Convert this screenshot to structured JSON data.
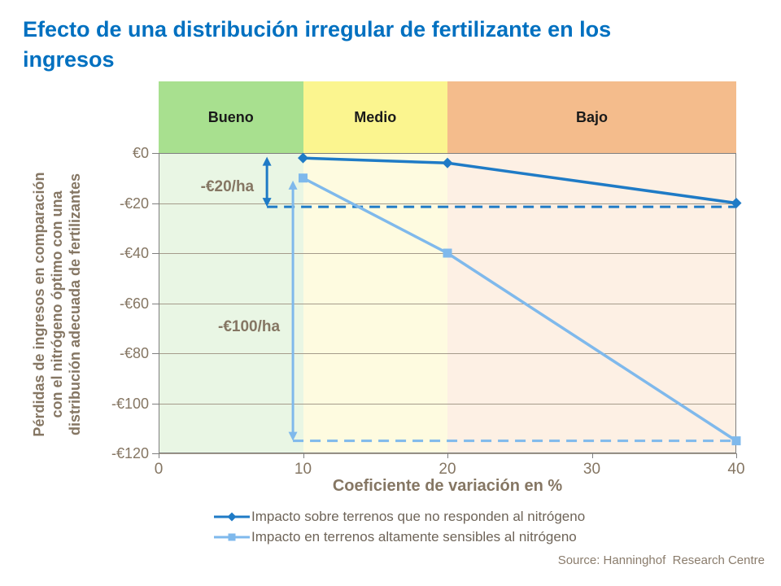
{
  "title": "Efecto de una distribución irregular de fertilizante en los ingresos",
  "source": "Source: Hanninghof  Research Centre",
  "colors": {
    "title_blue": "#0070C0",
    "axis_text_brown": "#857663",
    "gridline": "#a59b8b",
    "series_dark_blue": "#1F7BC6",
    "series_light_blue": "#7FB9EC"
  },
  "chart_data": {
    "type": "line",
    "x": [
      10,
      20,
      40
    ],
    "xlim": [
      0,
      40
    ],
    "ylim": [
      -120,
      0
    ],
    "x_ticks": [
      "0",
      "10",
      "20",
      "30",
      "40"
    ],
    "y_ticks": [
      "€0",
      "-€20",
      "-€40",
      "-€60",
      "-€80",
      "-€100",
      "-€120"
    ],
    "xlabel": "Coeficiente de variación en %",
    "ylabel": "Pérdidas de ingresos en comparación\ncon el nitrógeno óptimo con una\ndistribución adecuada de fertilizantes",
    "grid": true,
    "legend_position": "bottom",
    "series": [
      {
        "name": "Impacto sobre terrenos que no responden al nitrógeno",
        "values": [
          -2,
          -4,
          -20
        ],
        "color": "#1F7BC6",
        "marker": "diamond"
      },
      {
        "name": "Impacto en terrenos altamente sensibles al nitrógeno",
        "values": [
          -10,
          -40,
          -115
        ],
        "color": "#7FB9EC",
        "marker": "square"
      }
    ],
    "zones": [
      {
        "label": "Bueno",
        "from": 0,
        "to": 10,
        "color": "#A8E08F",
        "tint": "#E9F6E4"
      },
      {
        "label": "Medio",
        "from": 10,
        "to": 20,
        "color": "#FBF58F",
        "tint": "#FEFBE0"
      },
      {
        "label": "Bajo",
        "from": 20,
        "to": 40,
        "color": "#F4BC8C",
        "tint": "#FDF0E4"
      }
    ],
    "annotations": [
      {
        "text": "-€20/ha",
        "series": 0,
        "ref_value": -21.5,
        "arrow_from": -1.5,
        "arrow_at_x": 7.5,
        "label_at": -14
      },
      {
        "text": "-€100/ha",
        "series": 1,
        "ref_value": -115,
        "arrow_from": -11,
        "arrow_at_x": 9.3,
        "label_at": -70
      }
    ]
  }
}
